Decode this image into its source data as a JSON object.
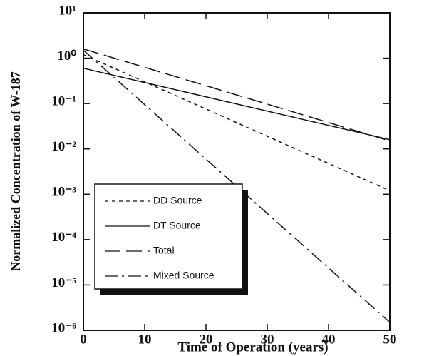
{
  "chart_data": {
    "type": "line",
    "x_label": "Time of Operation (years)",
    "y_label": "Normalized Concentration of W-187",
    "xlim": [
      0,
      50
    ],
    "xticks": [
      0,
      10,
      20,
      30,
      40,
      50
    ],
    "ylim": [
      1e-06,
      10
    ],
    "log_y": true,
    "yticks": [
      {
        "value": 10,
        "label": "10¹"
      },
      {
        "value": 1,
        "label": "10⁰"
      },
      {
        "value": 0.1,
        "label": "10⁻¹"
      },
      {
        "value": 0.01,
        "label": "10⁻²"
      },
      {
        "value": 0.001,
        "label": "10⁻³"
      },
      {
        "value": 0.0001,
        "label": "10⁻⁴"
      },
      {
        "value": 1e-05,
        "label": "10⁻⁵"
      },
      {
        "value": 1e-06,
        "label": "10⁻⁶"
      }
    ],
    "x": [
      0,
      50
    ],
    "series": [
      {
        "name": "DD Source",
        "color": "#111111",
        "values": [
          1.2,
          0.0012
        ]
      },
      {
        "name": "DT Source",
        "color": "#111111",
        "values": [
          0.6,
          0.016
        ]
      },
      {
        "name": "Total",
        "color": "#111111",
        "values": [
          1.6,
          0.015
        ]
      },
      {
        "name": "Mixed Source",
        "color": "#111111",
        "values": [
          1.5,
          1.5e-06
        ]
      }
    ],
    "legend": "lower left"
  }
}
